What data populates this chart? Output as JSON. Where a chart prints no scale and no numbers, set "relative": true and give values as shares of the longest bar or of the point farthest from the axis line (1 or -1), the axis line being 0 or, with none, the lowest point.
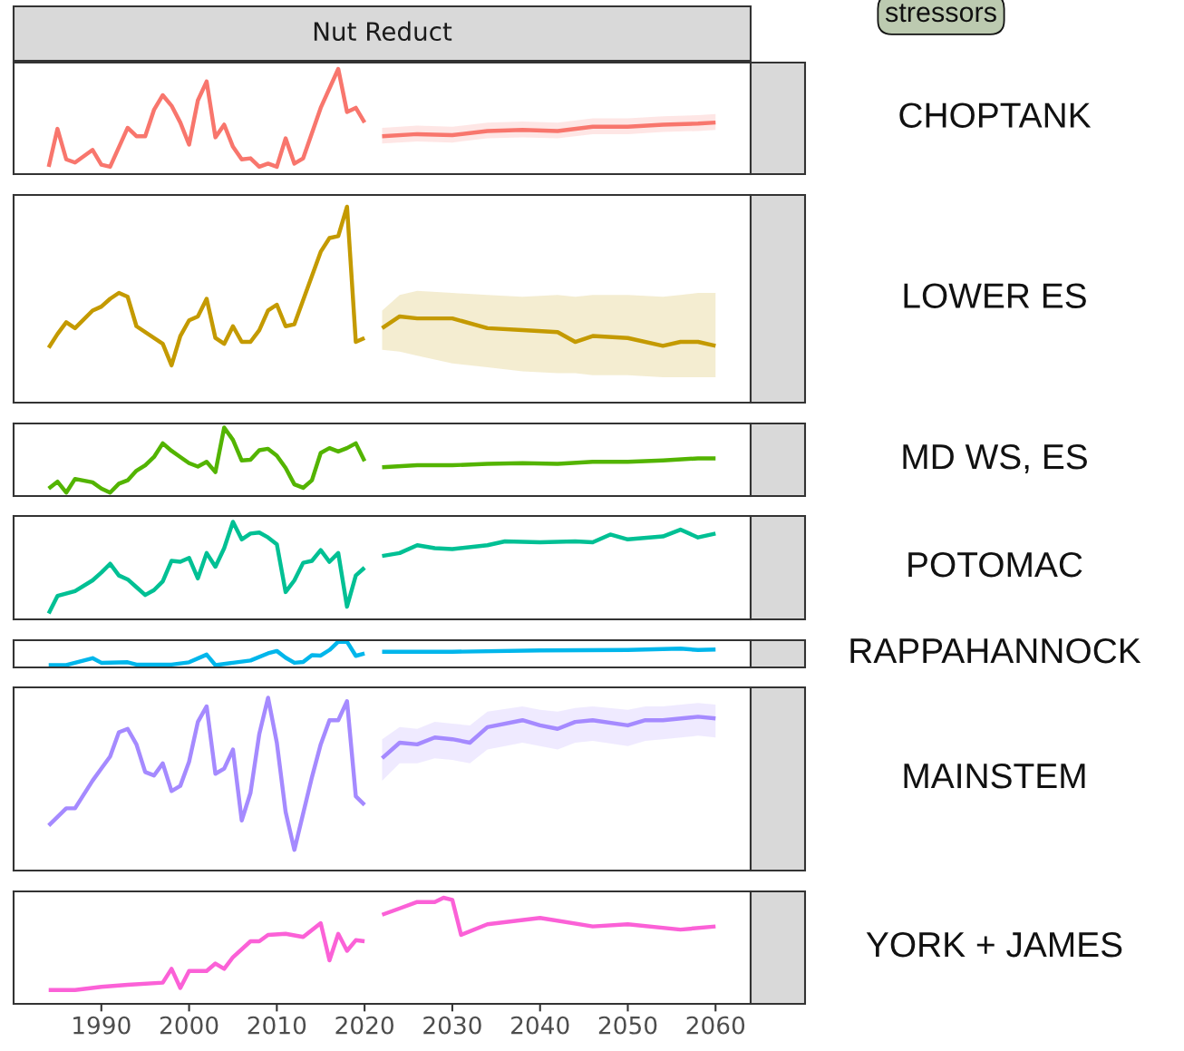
{
  "chart_data": [
    {
      "type": "line",
      "title": "Nut Reduct",
      "ylabel": "CHOPTANK",
      "relative": true,
      "xlim": [
        1980,
        2064
      ],
      "tick_labels": false,
      "grid": false,
      "annotations": [
        "stressors"
      ],
      "series": [
        {
          "color": "#f8766d",
          "x": [
            1984,
            1985,
            1986,
            1987,
            1989,
            1990,
            1991,
            1993,
            1994,
            1995,
            1996,
            1997,
            1998,
            1999,
            2000,
            2001,
            2002,
            2003,
            2004,
            2005,
            2006,
            2007,
            2008,
            2009,
            2010,
            2011,
            2012,
            2013,
            2015,
            2017,
            2018,
            2019,
            2020
          ],
          "values": [
            0.07,
            0.43,
            0.14,
            0.11,
            0.23,
            0.09,
            0.07,
            0.44,
            0.36,
            0.36,
            0.61,
            0.75,
            0.65,
            0.49,
            0.28,
            0.7,
            0.88,
            0.35,
            0.47,
            0.26,
            0.14,
            0.15,
            0.07,
            0.1,
            0.07,
            0.34,
            0.1,
            0.15,
            0.63,
            1.0,
            0.59,
            0.63,
            0.49
          ]
        },
        {
          "color": "#f8766d",
          "x": [
            2022,
            2026,
            2030,
            2034,
            2038,
            2042,
            2046,
            2050,
            2054,
            2058,
            2060
          ],
          "values": [
            0.36,
            0.38,
            0.37,
            0.41,
            0.42,
            0.41,
            0.45,
            0.45,
            0.47,
            0.48,
            0.49
          ],
          "lower": [
            0.29,
            0.31,
            0.3,
            0.34,
            0.35,
            0.34,
            0.38,
            0.38,
            0.4,
            0.41,
            0.42
          ],
          "upper": [
            0.44,
            0.46,
            0.45,
            0.49,
            0.5,
            0.49,
            0.53,
            0.53,
            0.55,
            0.56,
            0.57
          ]
        }
      ]
    },
    {
      "type": "line",
      "ylabel": "LOWER ES",
      "relative": true,
      "xlim": [
        1980,
        2064
      ],
      "tick_labels": false,
      "grid": false,
      "series": [
        {
          "color": "#c49a00",
          "x": [
            1984,
            1985,
            1986,
            1987,
            1989,
            1990,
            1991,
            1992,
            1993,
            1994,
            1997,
            1998,
            1999,
            2000,
            2001,
            2002,
            2003,
            2004,
            2005,
            2006,
            2007,
            2008,
            2009,
            2010,
            2011,
            2012,
            2015,
            2016,
            2017,
            2018,
            2019,
            2020
          ],
          "values": [
            0.28,
            0.35,
            0.41,
            0.38,
            0.47,
            0.49,
            0.53,
            0.56,
            0.54,
            0.39,
            0.3,
            0.19,
            0.34,
            0.42,
            0.44,
            0.53,
            0.33,
            0.3,
            0.39,
            0.31,
            0.31,
            0.37,
            0.47,
            0.5,
            0.39,
            0.4,
            0.77,
            0.84,
            0.85,
            1.0,
            0.31,
            0.33
          ]
        },
        {
          "color": "#c49a00",
          "x": [
            2022,
            2024,
            2026,
            2030,
            2034,
            2038,
            2042,
            2044,
            2046,
            2050,
            2054,
            2056,
            2058,
            2060
          ],
          "values": [
            0.38,
            0.44,
            0.43,
            0.43,
            0.38,
            0.37,
            0.36,
            0.31,
            0.34,
            0.33,
            0.29,
            0.31,
            0.31,
            0.29
          ],
          "lower": [
            0.27,
            0.26,
            0.24,
            0.2,
            0.18,
            0.16,
            0.15,
            0.15,
            0.14,
            0.14,
            0.13,
            0.13,
            0.13,
            0.13
          ],
          "upper": [
            0.47,
            0.55,
            0.57,
            0.56,
            0.55,
            0.54,
            0.55,
            0.54,
            0.55,
            0.55,
            0.54,
            0.55,
            0.56,
            0.56
          ]
        }
      ]
    },
    {
      "type": "line",
      "ylabel": "MD WS, ES",
      "relative": true,
      "xlim": [
        1980,
        2064
      ],
      "tick_labels": false,
      "grid": false,
      "series": [
        {
          "color": "#53b400",
          "x": [
            1984,
            1985,
            1986,
            1987,
            1989,
            1990,
            1991,
            1992,
            1993,
            1994,
            1995,
            1996,
            1997,
            1998,
            1999,
            2000,
            2001,
            2002,
            2003,
            2004,
            2005,
            2006,
            2007,
            2008,
            2009,
            2010,
            2011,
            2012,
            2013,
            2014,
            2015,
            2016,
            2017,
            2018,
            2019,
            2020
          ],
          "values": [
            0.11,
            0.21,
            0.05,
            0.25,
            0.2,
            0.11,
            0.05,
            0.18,
            0.23,
            0.37,
            0.45,
            0.57,
            0.77,
            0.66,
            0.57,
            0.48,
            0.43,
            0.5,
            0.35,
            1.0,
            0.82,
            0.52,
            0.53,
            0.67,
            0.69,
            0.59,
            0.41,
            0.17,
            0.12,
            0.23,
            0.63,
            0.7,
            0.65,
            0.7,
            0.77,
            0.51
          ]
        },
        {
          "color": "#53b400",
          "x": [
            2022,
            2026,
            2030,
            2034,
            2038,
            2042,
            2046,
            2050,
            2054,
            2058,
            2060
          ],
          "values": [
            0.42,
            0.45,
            0.45,
            0.47,
            0.48,
            0.47,
            0.5,
            0.5,
            0.52,
            0.55,
            0.55
          ]
        }
      ]
    },
    {
      "type": "line",
      "ylabel": "POTOMAC",
      "relative": true,
      "xlim": [
        1980,
        2064
      ],
      "tick_labels": false,
      "grid": false,
      "series": [
        {
          "color": "#00c094",
          "x": [
            1984,
            1985,
            1987,
            1989,
            1990,
            1991,
            1992,
            1993,
            1994,
            1995,
            1996,
            1997,
            1998,
            1999,
            2000,
            2001,
            2002,
            2003,
            2004,
            2005,
            2006,
            2007,
            2008,
            2009,
            2010,
            2011,
            2012,
            2013,
            2014,
            2015,
            2016,
            2017,
            2018,
            2019,
            2020
          ],
          "values": [
            0.06,
            0.24,
            0.29,
            0.4,
            0.48,
            0.57,
            0.45,
            0.41,
            0.33,
            0.25,
            0.3,
            0.39,
            0.6,
            0.59,
            0.63,
            0.42,
            0.68,
            0.54,
            0.73,
            1.0,
            0.82,
            0.88,
            0.89,
            0.84,
            0.77,
            0.28,
            0.4,
            0.58,
            0.6,
            0.71,
            0.59,
            0.68,
            0.13,
            0.45,
            0.53
          ]
        },
        {
          "color": "#00c094",
          "x": [
            2022,
            2024,
            2026,
            2028,
            2030,
            2034,
            2036,
            2040,
            2044,
            2046,
            2048,
            2050,
            2054,
            2056,
            2058,
            2060
          ],
          "values": [
            0.65,
            0.68,
            0.76,
            0.73,
            0.72,
            0.76,
            0.8,
            0.79,
            0.8,
            0.79,
            0.87,
            0.82,
            0.85,
            0.92,
            0.84,
            0.88
          ]
        }
      ]
    },
    {
      "type": "line",
      "ylabel": "RAPPAHANNOCK",
      "relative": true,
      "xlim": [
        1980,
        2064
      ],
      "tick_labels": false,
      "grid": false,
      "series": [
        {
          "color": "#00b6eb",
          "x": [
            1984,
            1986,
            1989,
            1990,
            1993,
            1994,
            1998,
            2000,
            2002,
            2003,
            2005,
            2007,
            2009,
            2010,
            2011,
            2012,
            2013,
            2014,
            2015,
            2016,
            2017,
            2018,
            2019,
            2020
          ],
          "values": [
            0.09,
            0.09,
            0.36,
            0.18,
            0.2,
            0.11,
            0.11,
            0.2,
            0.5,
            0.09,
            0.18,
            0.27,
            0.55,
            0.64,
            0.38,
            0.18,
            0.21,
            0.48,
            0.46,
            0.68,
            1.0,
            1.0,
            0.45,
            0.54
          ]
        },
        {
          "color": "#00b6eb",
          "x": [
            2022,
            2030,
            2040,
            2050,
            2056,
            2058,
            2060
          ],
          "values": [
            0.61,
            0.61,
            0.66,
            0.68,
            0.73,
            0.68,
            0.7
          ]
        }
      ]
    },
    {
      "type": "line",
      "ylabel": "MAINSTEM",
      "relative": true,
      "xlim": [
        1980,
        2064
      ],
      "tick_labels": false,
      "grid": false,
      "series": [
        {
          "color": "#a58aff",
          "x": [
            1984,
            1986,
            1987,
            1989,
            1990,
            1991,
            1992,
            1993,
            1994,
            1995,
            1996,
            1997,
            1998,
            1999,
            2000,
            2001,
            2002,
            2003,
            2004,
            2005,
            2006,
            2007,
            2008,
            2009,
            2010,
            2011,
            2012,
            2014,
            2015,
            2016,
            2017,
            2018,
            2019,
            2020
          ],
          "values": [
            0.26,
            0.36,
            0.36,
            0.52,
            0.59,
            0.66,
            0.8,
            0.82,
            0.73,
            0.57,
            0.55,
            0.62,
            0.46,
            0.49,
            0.63,
            0.86,
            0.95,
            0.56,
            0.59,
            0.7,
            0.29,
            0.45,
            0.79,
            1.0,
            0.74,
            0.34,
            0.12,
            0.54,
            0.73,
            0.87,
            0.87,
            0.98,
            0.43,
            0.38
          ]
        },
        {
          "color": "#a58aff",
          "x": [
            2022,
            2024,
            2026,
            2028,
            2030,
            2032,
            2034,
            2038,
            2040,
            2042,
            2044,
            2046,
            2050,
            2052,
            2054,
            2058,
            2060
          ],
          "values": [
            0.65,
            0.74,
            0.73,
            0.77,
            0.76,
            0.74,
            0.83,
            0.87,
            0.84,
            0.82,
            0.86,
            0.87,
            0.84,
            0.87,
            0.87,
            0.89,
            0.88
          ],
          "lower": [
            0.52,
            0.62,
            0.62,
            0.65,
            0.64,
            0.62,
            0.7,
            0.74,
            0.72,
            0.7,
            0.74,
            0.75,
            0.72,
            0.75,
            0.76,
            0.78,
            0.77
          ],
          "upper": [
            0.76,
            0.83,
            0.82,
            0.86,
            0.85,
            0.84,
            0.92,
            0.95,
            0.93,
            0.92,
            0.94,
            0.95,
            0.93,
            0.95,
            0.95,
            0.97,
            0.96
          ]
        }
      ]
    },
    {
      "type": "line",
      "ylabel": "YORK + JAMES",
      "relative": true,
      "xlim": [
        1980,
        2064
      ],
      "xticks": [
        1990,
        2000,
        2010,
        2020,
        2030,
        2040,
        2050,
        2060
      ],
      "tick_labels": "x",
      "grid": false,
      "series": [
        {
          "color": "#fb61d7",
          "x": [
            1984,
            1987,
            1990,
            1993,
            1997,
            1998,
            1999,
            2000,
            2002,
            2003,
            2004,
            2005,
            2007,
            2008,
            2009,
            2011,
            2013,
            2015,
            2016,
            2017,
            2018,
            2019,
            2020
          ],
          "values": [
            0.13,
            0.13,
            0.16,
            0.18,
            0.2,
            0.33,
            0.15,
            0.31,
            0.31,
            0.38,
            0.33,
            0.44,
            0.59,
            0.59,
            0.65,
            0.66,
            0.63,
            0.76,
            0.41,
            0.66,
            0.5,
            0.6,
            0.59
          ]
        },
        {
          "color": "#fb61d7",
          "x": [
            2022,
            2024,
            2026,
            2028,
            2029,
            2030,
            2031,
            2034,
            2040,
            2046,
            2050,
            2056,
            2060
          ],
          "values": [
            0.84,
            0.9,
            0.96,
            0.96,
            1.0,
            0.98,
            0.65,
            0.75,
            0.81,
            0.73,
            0.75,
            0.7,
            0.73
          ]
        }
      ]
    }
  ]
}
